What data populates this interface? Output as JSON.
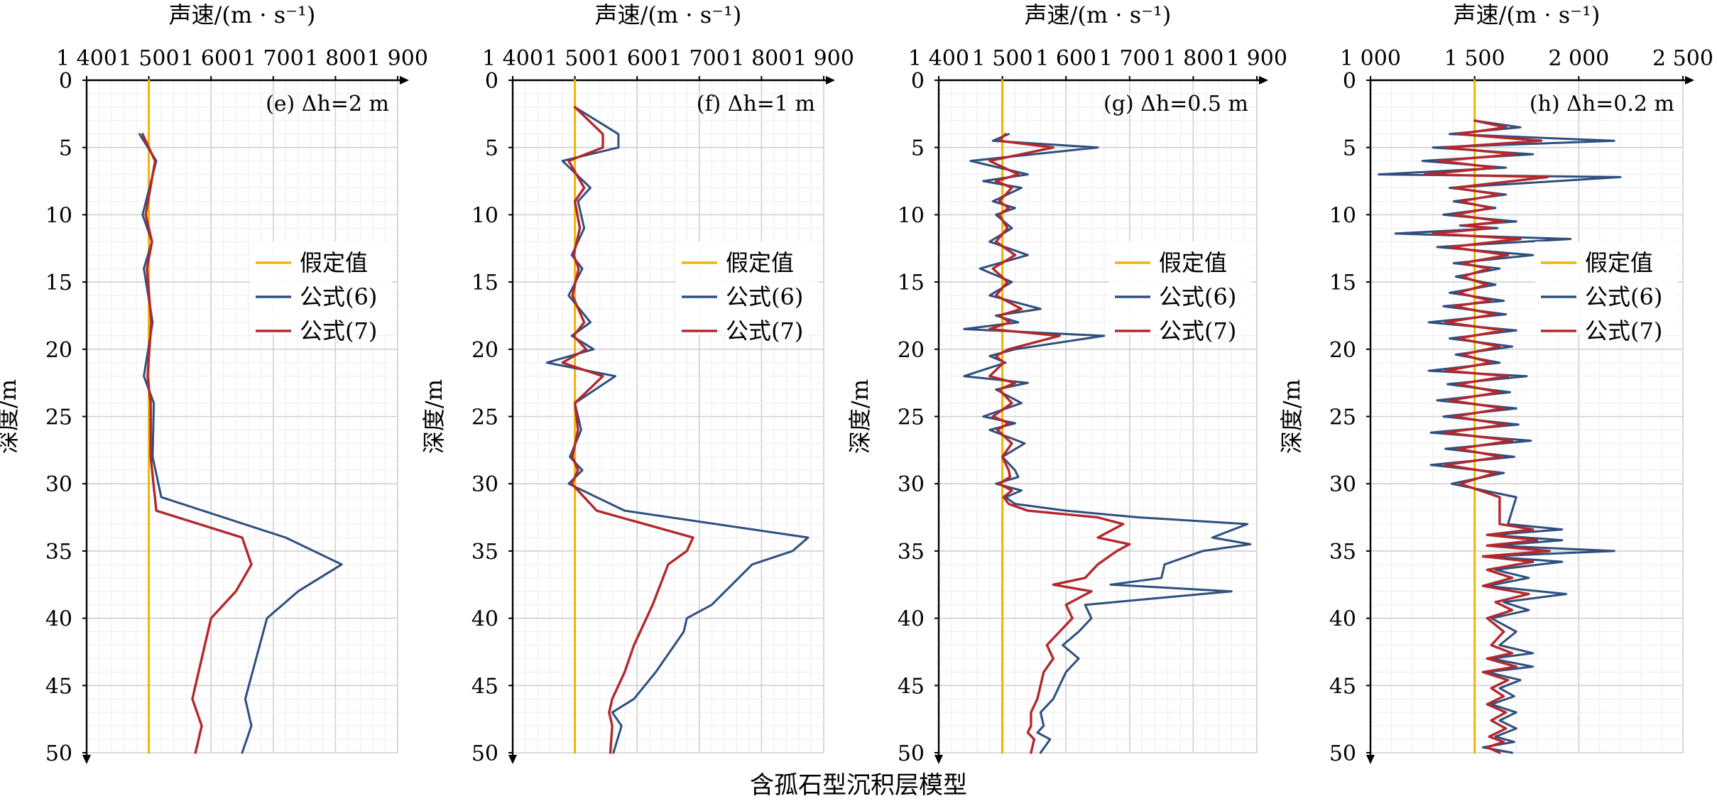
{
  "caption": "含孤石型沉积层模型",
  "colors": {
    "assumed": "#f0b400",
    "formula6": "#2e4f7e",
    "formula7": "#b3282d",
    "grid_major": "#cfcfcf",
    "grid_minor": "#ececec",
    "axis": "#000000"
  },
  "chart_data": [
    {
      "type": "line",
      "panel_label": "(e) Δh=2 m",
      "xlabel": "声速/(m · s⁻¹)",
      "ylabel": "深度/m",
      "xlim": [
        1400,
        1900
      ],
      "ylim": [
        0,
        50
      ],
      "x_ticks": [
        "1 400",
        "1 500",
        "1 600",
        "1 700",
        "1 800",
        "1 900"
      ],
      "y_ticks": [
        "0",
        "5",
        "10",
        "15",
        "20",
        "25",
        "30",
        "35",
        "40",
        "45",
        "50"
      ],
      "grid": true,
      "legend_position": "right-middle",
      "series": [
        {
          "name": "假定值",
          "x": [
            1500,
            1500
          ],
          "y": [
            0,
            50
          ]
        },
        {
          "name": "公式(6)",
          "x": [
            1485,
            1512,
            1490,
            1505,
            1492,
            1506,
            1492,
            1508,
            1506,
            1520,
            1720,
            1810,
            1740,
            1690,
            1655,
            1665,
            1650
          ],
          "y": [
            4,
            6,
            10,
            12,
            14,
            18,
            22,
            24,
            28,
            31,
            34,
            36,
            38,
            40,
            46,
            48,
            50
          ]
        },
        {
          "name": "公式(7)",
          "x": [
            1490,
            1510,
            1495,
            1505,
            1497,
            1504,
            1498,
            1503,
            1503,
            1512,
            1650,
            1665,
            1640,
            1600,
            1570,
            1585,
            1575
          ],
          "y": [
            4,
            6,
            10,
            12,
            14,
            18,
            22,
            24,
            28,
            32,
            34,
            36,
            38,
            40,
            46,
            48,
            50
          ]
        }
      ]
    },
    {
      "type": "line",
      "panel_label": "(f) Δh=1 m",
      "xlabel": "声速/(m · s⁻¹)",
      "ylabel": "深度/m",
      "xlim": [
        1400,
        1900
      ],
      "ylim": [
        0,
        50
      ],
      "x_ticks": [
        "1 400",
        "1 500",
        "1 600",
        "1 700",
        "1 800",
        "1 900"
      ],
      "y_ticks": [
        "0",
        "5",
        "10",
        "15",
        "20",
        "25",
        "30",
        "35",
        "40",
        "45",
        "50"
      ],
      "grid": true,
      "legend_position": "right-middle",
      "series": [
        {
          "name": "假定值",
          "x": [
            1500,
            1500
          ],
          "y": [
            0,
            50
          ]
        },
        {
          "name": "公式(6)",
          "x": [
            1500,
            1570,
            1570,
            1480,
            1525,
            1505,
            1515,
            1495,
            1512,
            1490,
            1525,
            1495,
            1530,
            1455,
            1565,
            1500,
            1510,
            1492,
            1512,
            1490,
            1580,
            1875,
            1850,
            1785,
            1720,
            1680,
            1675,
            1660,
            1630,
            1595,
            1560,
            1575,
            1562
          ],
          "y": [
            2,
            4,
            5,
            6,
            8,
            9,
            11,
            13,
            14,
            16,
            18,
            19,
            20,
            21,
            22,
            24,
            26,
            28,
            29,
            30,
            32,
            34,
            35,
            36,
            39,
            40,
            41,
            42,
            44,
            46,
            47,
            48,
            50
          ]
        },
        {
          "name": "公式(7)",
          "x": [
            1500,
            1545,
            1545,
            1490,
            1515,
            1500,
            1508,
            1498,
            1506,
            1496,
            1515,
            1498,
            1518,
            1480,
            1545,
            1500,
            1505,
            1496,
            1505,
            1495,
            1535,
            1690,
            1680,
            1650,
            1625,
            1615,
            1605,
            1595,
            1580,
            1560,
            1555,
            1560,
            1557
          ],
          "y": [
            2,
            4,
            5,
            6,
            8,
            9,
            11,
            13,
            14,
            16,
            18,
            19,
            20,
            21,
            22,
            24,
            26,
            28,
            29,
            30,
            32,
            34,
            35,
            36,
            39,
            40,
            41,
            42,
            44,
            46,
            47,
            48,
            50
          ]
        }
      ]
    },
    {
      "type": "line",
      "panel_label": "(g) Δh=0.5 m",
      "xlabel": "声速/(m · s⁻¹)",
      "ylabel": "深度/m",
      "xlim": [
        1400,
        1900
      ],
      "ylim": [
        0,
        50
      ],
      "x_ticks": [
        "1 400",
        "1 500",
        "1 600",
        "1 700",
        "1 800",
        "1 900"
      ],
      "y_ticks": [
        "0",
        "5",
        "10",
        "15",
        "20",
        "25",
        "30",
        "35",
        "40",
        "45",
        "50"
      ],
      "grid": true,
      "legend_position": "right-middle",
      "series": [
        {
          "name": "假定值",
          "x": [
            1500,
            1500
          ],
          "y": [
            0,
            50
          ]
        },
        {
          "name": "公式(6)",
          "x": [
            1510,
            1485,
            1650,
            1450,
            1540,
            1470,
            1530,
            1485,
            1520,
            1490,
            1515,
            1480,
            1540,
            1465,
            1515,
            1480,
            1560,
            1490,
            1525,
            1440,
            1660,
            1520,
            1480,
            1505,
            1440,
            1540,
            1490,
            1530,
            1470,
            1520,
            1480,
            1535,
            1500,
            1520,
            1525,
            1490,
            1530,
            1505,
            1520,
            1600,
            1715,
            1885,
            1830,
            1890,
            1815,
            1755,
            1750,
            1670,
            1860,
            1630,
            1640,
            1620,
            1595,
            1620,
            1600,
            1590,
            1580,
            1570,
            1560,
            1565,
            1555,
            1575,
            1560
          ],
          "y": [
            4,
            4.5,
            5,
            6,
            7,
            7.5,
            8,
            9,
            9.5,
            10,
            11,
            12,
            13,
            14,
            15,
            16,
            17,
            17.5,
            18,
            18.5,
            19,
            20,
            20.5,
            21,
            22,
            22.5,
            23,
            24,
            25,
            25.5,
            26,
            27,
            28,
            29,
            29.5,
            30,
            30.5,
            31,
            31.5,
            32,
            32.5,
            33,
            34,
            34.5,
            35,
            36,
            37,
            37.5,
            38,
            39,
            40,
            41,
            42,
            43,
            44,
            45,
            46,
            46.5,
            47,
            48,
            48.5,
            49,
            50
          ]
        },
        {
          "name": "公式(7)",
          "x": [
            1505,
            1495,
            1580,
            1480,
            1525,
            1490,
            1515,
            1495,
            1510,
            1495,
            1508,
            1490,
            1520,
            1485,
            1508,
            1490,
            1530,
            1495,
            1512,
            1480,
            1590,
            1510,
            1490,
            1502,
            1480,
            1520,
            1495,
            1515,
            1485,
            1510,
            1492,
            1515,
            1500,
            1510,
            1512,
            1495,
            1515,
            1502,
            1510,
            1540,
            1650,
            1690,
            1650,
            1700,
            1680,
            1650,
            1630,
            1580,
            1640,
            1600,
            1610,
            1590,
            1570,
            1580,
            1565,
            1560,
            1555,
            1550,
            1545,
            1545,
            1540,
            1550,
            1545
          ],
          "y": [
            4,
            4.5,
            5,
            6,
            7,
            7.5,
            8,
            9,
            9.5,
            10,
            11,
            12,
            13,
            14,
            15,
            16,
            17,
            17.5,
            18,
            18.5,
            19,
            20,
            20.5,
            21,
            22,
            22.5,
            23,
            24,
            25,
            25.5,
            26,
            27,
            28,
            29,
            29.5,
            30,
            30.5,
            31,
            31.5,
            32,
            32.5,
            33,
            34,
            34.5,
            35,
            36,
            37,
            37.5,
            38,
            39,
            40,
            41,
            42,
            43,
            44,
            45,
            46,
            46.5,
            47,
            48,
            48.5,
            49,
            50
          ]
        }
      ]
    },
    {
      "type": "line",
      "panel_label": "(h) Δh=0.2 m",
      "xlabel": "声速/(m · s⁻¹)",
      "ylabel": "深度/m",
      "xlim": [
        1000,
        2500
      ],
      "ylim": [
        0,
        50
      ],
      "x_ticks": [
        "1 000",
        "1 500",
        "2 000",
        "2 500"
      ],
      "y_ticks": [
        "0",
        "5",
        "10",
        "15",
        "20",
        "25",
        "30",
        "35",
        "40",
        "45",
        "50"
      ],
      "grid": true,
      "legend_position": "right-middle",
      "series": [
        {
          "name": "假定值",
          "x": [
            1500,
            1500
          ],
          "y": [
            0,
            50
          ]
        },
        {
          "name": "公式(6)",
          "x": [
            1500,
            1720,
            1380,
            2170,
            1300,
            1780,
            1250,
            1650,
            1040,
            2200,
            1380,
            1650,
            1400,
            1600,
            1350,
            1700,
            1430,
            1610,
            1120,
            1960,
            1320,
            1780,
            1400,
            1620,
            1410,
            1600,
            1380,
            1640,
            1350,
            1650,
            1280,
            1700,
            1380,
            1680,
            1410,
            1620,
            1280,
            1750,
            1370,
            1670,
            1320,
            1700,
            1350,
            1710,
            1290,
            1770,
            1360,
            1690,
            1290,
            1640,
            1390,
            1700,
            1660,
            1920,
            1580,
            1920,
            1600,
            2170,
            1560,
            1920,
            1600,
            1760,
            1560,
            1940,
            1640,
            1760,
            1580,
            1700,
            1620,
            1780,
            1580,
            1780,
            1560,
            1720,
            1620,
            1690,
            1580,
            1700,
            1620,
            1700,
            1600,
            1690,
            1540,
            1680
          ],
          "y": [
            3,
            3.5,
            4,
            4.5,
            5,
            5.5,
            6,
            6.5,
            7,
            7.2,
            8,
            8.5,
            9,
            9.5,
            10,
            10.5,
            10.8,
            11,
            11.4,
            11.8,
            12.4,
            13,
            13.6,
            14,
            14.6,
            15.2,
            15.8,
            16.4,
            16.8,
            17.4,
            18,
            18.6,
            19.2,
            19.8,
            20.4,
            21,
            21.6,
            22,
            22.6,
            23.2,
            23.8,
            24.4,
            25,
            25.6,
            26.2,
            26.8,
            27.4,
            28,
            28.6,
            29.2,
            30,
            31,
            33,
            33.4,
            33.8,
            34.2,
            34.6,
            35,
            35.4,
            35.8,
            36.4,
            37,
            37.6,
            38.2,
            38.8,
            39.4,
            40,
            41,
            42,
            42.6,
            43,
            43.6,
            44,
            44.6,
            45.2,
            45.8,
            46.4,
            47,
            47.6,
            48.2,
            48.8,
            49.2,
            49.6,
            50
          ]
        },
        {
          "name": "公式(7)",
          "x": [
            1500,
            1650,
            1420,
            1820,
            1360,
            1700,
            1330,
            1600,
            1260,
            1850,
            1400,
            1620,
            1430,
            1580,
            1400,
            1640,
            1450,
            1580,
            1300,
            1720,
            1380,
            1660,
            1440,
            1570,
            1440,
            1560,
            1420,
            1580,
            1400,
            1600,
            1360,
            1640,
            1420,
            1620,
            1440,
            1580,
            1360,
            1660,
            1420,
            1620,
            1380,
            1640,
            1400,
            1650,
            1360,
            1680,
            1420,
            1630,
            1360,
            1600,
            1430,
            1620,
            1620,
            1780,
            1560,
            1800,
            1560,
            1860,
            1540,
            1780,
            1560,
            1680,
            1540,
            1760,
            1600,
            1680,
            1560,
            1640,
            1580,
            1680,
            1560,
            1700,
            1540,
            1660,
            1580,
            1640,
            1560,
            1650,
            1580,
            1650,
            1570,
            1640,
            1560,
            1620
          ],
          "y": [
            3,
            3.5,
            4,
            4.5,
            5,
            5.5,
            6,
            6.5,
            7,
            7.2,
            8,
            8.5,
            9,
            9.5,
            10,
            10.5,
            10.8,
            11,
            11.4,
            11.8,
            12.4,
            13,
            13.6,
            14,
            14.6,
            15.2,
            15.8,
            16.4,
            16.8,
            17.4,
            18,
            18.6,
            19.2,
            19.8,
            20.4,
            21,
            21.6,
            22,
            22.6,
            23.2,
            23.8,
            24.4,
            25,
            25.6,
            26.2,
            26.8,
            27.4,
            28,
            28.6,
            29.2,
            30,
            31,
            33,
            33.4,
            33.8,
            34.2,
            34.6,
            35,
            35.4,
            35.8,
            36.4,
            37,
            37.6,
            38.2,
            38.8,
            39.4,
            40,
            41,
            42,
            42.6,
            43,
            43.6,
            44,
            44.6,
            45.2,
            45.8,
            46.4,
            47,
            47.6,
            48.2,
            48.8,
            49.2,
            49.6,
            50
          ]
        }
      ]
    }
  ]
}
